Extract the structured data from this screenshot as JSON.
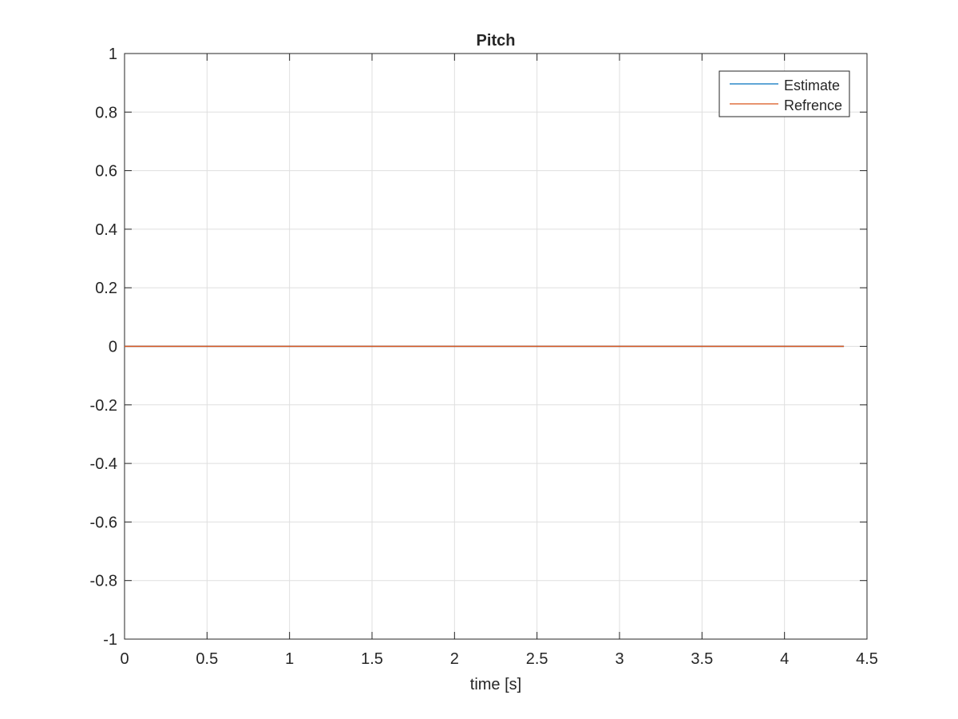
{
  "chart_data": {
    "type": "line",
    "title": "Pitch",
    "xlabel": "time [s]",
    "ylabel": "",
    "xlim": [
      0,
      4.5
    ],
    "ylim": [
      -1,
      1
    ],
    "xticks": [
      0,
      0.5,
      1,
      1.5,
      2,
      2.5,
      3,
      3.5,
      4,
      4.5
    ],
    "yticks": [
      -1,
      -0.8,
      -0.6,
      -0.4,
      -0.2,
      0,
      0.2,
      0.4,
      0.6,
      0.8,
      1
    ],
    "xtick_labels": [
      "0",
      "0.5",
      "1",
      "1.5",
      "2",
      "2.5",
      "3",
      "3.5",
      "4",
      "4.5"
    ],
    "ytick_labels": [
      "-1",
      "-0.8",
      "-0.6",
      "-0.4",
      "-0.2",
      "0",
      "0.2",
      "0.4",
      "0.6",
      "0.8",
      "1"
    ],
    "grid": true,
    "legend_position": "top-right",
    "series": [
      {
        "name": "Estimate",
        "color": "#0072BD",
        "x": [
          0,
          4.36
        ],
        "y": [
          0,
          0
        ]
      },
      {
        "name": "Refrence",
        "color": "#D95319",
        "x": [
          0,
          4.36
        ],
        "y": [
          0,
          0
        ]
      }
    ]
  }
}
